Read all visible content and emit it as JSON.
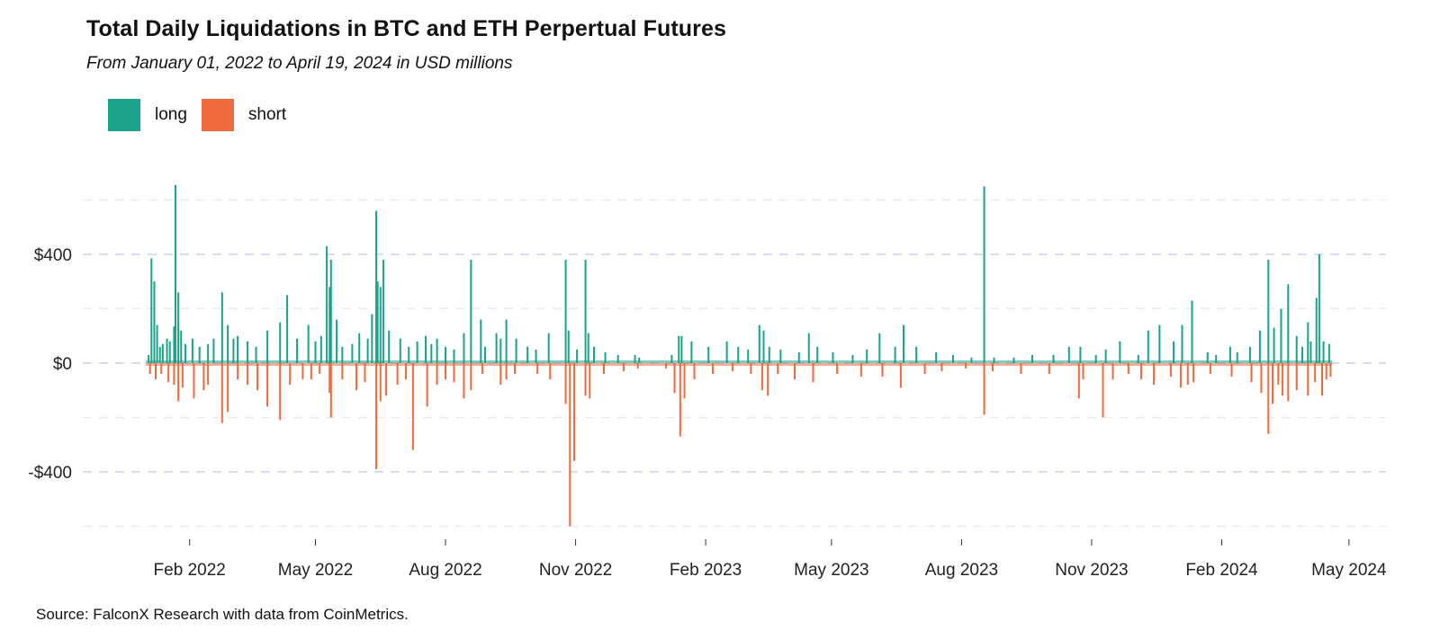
{
  "chart_data": {
    "type": "bar",
    "title": "Total Daily Liquidations in BTC and ETH Perpertual Futures",
    "subtitle": "From January 01, 2022 to April 19, 2024 in USD millions",
    "source": "Source: FalconX Research with data from CoinMetrics.",
    "x_range": [
      "2022-01-01",
      "2024-04-19"
    ],
    "ylim": [
      -650,
      680
    ],
    "y_ticks": [
      -400,
      0,
      400
    ],
    "y_tick_labels": [
      "-$400",
      "$0",
      "$400"
    ],
    "x_ticks": [
      "2022-02-01",
      "2022-05-01",
      "2022-08-01",
      "2022-11-01",
      "2023-02-01",
      "2023-05-01",
      "2023-08-01",
      "2023-11-01",
      "2024-02-01",
      "2024-05-01"
    ],
    "x_tick_labels": [
      "Feb 2022",
      "May 2022",
      "Aug 2022",
      "Nov 2022",
      "Feb 2023",
      "May 2023",
      "Aug 2023",
      "Nov 2023",
      "Feb 2024",
      "May 2024"
    ],
    "grid": "horizontal dashed",
    "legend": {
      "position": "top-left",
      "entries": [
        {
          "label": "long",
          "color": "#1aa38a"
        },
        {
          "label": "short",
          "color": "#ef6a3c"
        }
      ]
    },
    "series": [
      {
        "name": "long",
        "color": "#1aa38a",
        "values": [
          [
            "2022-01-03",
            30
          ],
          [
            "2022-01-05",
            385
          ],
          [
            "2022-01-07",
            300
          ],
          [
            "2022-01-09",
            140
          ],
          [
            "2022-01-11",
            60
          ],
          [
            "2022-01-13",
            70
          ],
          [
            "2022-01-16",
            90
          ],
          [
            "2022-01-18",
            80
          ],
          [
            "2022-01-21",
            135
          ],
          [
            "2022-01-22",
            655
          ],
          [
            "2022-01-24",
            260
          ],
          [
            "2022-01-26",
            120
          ],
          [
            "2022-01-29",
            70
          ],
          [
            "2022-02-03",
            90
          ],
          [
            "2022-02-08",
            60
          ],
          [
            "2022-02-14",
            70
          ],
          [
            "2022-02-18",
            90
          ],
          [
            "2022-02-24",
            260
          ],
          [
            "2022-02-28",
            140
          ],
          [
            "2022-03-04",
            90
          ],
          [
            "2022-03-07",
            100
          ],
          [
            "2022-03-14",
            80
          ],
          [
            "2022-03-20",
            60
          ],
          [
            "2022-03-28",
            120
          ],
          [
            "2022-04-06",
            150
          ],
          [
            "2022-04-11",
            250
          ],
          [
            "2022-04-18",
            90
          ],
          [
            "2022-04-26",
            140
          ],
          [
            "2022-05-01",
            80
          ],
          [
            "2022-05-05",
            100
          ],
          [
            "2022-05-09",
            430
          ],
          [
            "2022-05-11",
            280
          ],
          [
            "2022-05-12",
            380
          ],
          [
            "2022-05-16",
            160
          ],
          [
            "2022-05-20",
            60
          ],
          [
            "2022-05-27",
            70
          ],
          [
            "2022-06-01",
            110
          ],
          [
            "2022-06-07",
            90
          ],
          [
            "2022-06-10",
            180
          ],
          [
            "2022-06-13",
            560
          ],
          [
            "2022-06-14",
            300
          ],
          [
            "2022-06-16",
            280
          ],
          [
            "2022-06-18",
            380
          ],
          [
            "2022-06-22",
            120
          ],
          [
            "2022-06-30",
            90
          ],
          [
            "2022-07-06",
            60
          ],
          [
            "2022-07-12",
            80
          ],
          [
            "2022-07-18",
            100
          ],
          [
            "2022-07-22",
            70
          ],
          [
            "2022-07-26",
            90
          ],
          [
            "2022-08-01",
            60
          ],
          [
            "2022-08-07",
            50
          ],
          [
            "2022-08-14",
            110
          ],
          [
            "2022-08-19",
            380
          ],
          [
            "2022-08-26",
            160
          ],
          [
            "2022-08-29",
            60
          ],
          [
            "2022-09-06",
            110
          ],
          [
            "2022-09-09",
            90
          ],
          [
            "2022-09-13",
            160
          ],
          [
            "2022-09-20",
            90
          ],
          [
            "2022-09-28",
            60
          ],
          [
            "2022-10-04",
            50
          ],
          [
            "2022-10-13",
            110
          ],
          [
            "2022-10-25",
            380
          ],
          [
            "2022-10-27",
            120
          ],
          [
            "2022-11-02",
            50
          ],
          [
            "2022-11-08",
            380
          ],
          [
            "2022-11-10",
            110
          ],
          [
            "2022-11-14",
            60
          ],
          [
            "2022-11-22",
            40
          ],
          [
            "2022-12-01",
            30
          ],
          [
            "2022-12-13",
            30
          ],
          [
            "2022-12-16",
            20
          ],
          [
            "2023-01-08",
            30
          ],
          [
            "2023-01-13",
            100
          ],
          [
            "2023-01-15",
            100
          ],
          [
            "2023-01-22",
            80
          ],
          [
            "2023-02-03",
            60
          ],
          [
            "2023-02-16",
            80
          ],
          [
            "2023-02-24",
            60
          ],
          [
            "2023-03-03",
            50
          ],
          [
            "2023-03-11",
            140
          ],
          [
            "2023-03-14",
            120
          ],
          [
            "2023-03-18",
            60
          ],
          [
            "2023-03-26",
            50
          ],
          [
            "2023-04-08",
            40
          ],
          [
            "2023-04-15",
            110
          ],
          [
            "2023-04-21",
            60
          ],
          [
            "2023-05-02",
            40
          ],
          [
            "2023-05-16",
            30
          ],
          [
            "2023-05-26",
            50
          ],
          [
            "2023-06-04",
            110
          ],
          [
            "2023-06-15",
            60
          ],
          [
            "2023-06-21",
            140
          ],
          [
            "2023-06-30",
            60
          ],
          [
            "2023-07-14",
            40
          ],
          [
            "2023-07-26",
            30
          ],
          [
            "2023-08-08",
            20
          ],
          [
            "2023-08-17",
            650
          ],
          [
            "2023-08-24",
            20
          ],
          [
            "2023-09-07",
            20
          ],
          [
            "2023-09-20",
            30
          ],
          [
            "2023-10-05",
            30
          ],
          [
            "2023-10-16",
            60
          ],
          [
            "2023-10-24",
            60
          ],
          [
            "2023-11-04",
            30
          ],
          [
            "2023-11-11",
            50
          ],
          [
            "2023-11-21",
            80
          ],
          [
            "2023-12-04",
            30
          ],
          [
            "2023-12-11",
            120
          ],
          [
            "2023-12-19",
            140
          ],
          [
            "2023-12-29",
            80
          ],
          [
            "2024-01-04",
            140
          ],
          [
            "2024-01-11",
            230
          ],
          [
            "2024-01-22",
            40
          ],
          [
            "2024-01-28",
            30
          ],
          [
            "2024-02-07",
            60
          ],
          [
            "2024-02-12",
            40
          ],
          [
            "2024-02-21",
            60
          ],
          [
            "2024-02-28",
            120
          ],
          [
            "2024-03-05",
            380
          ],
          [
            "2024-03-09",
            130
          ],
          [
            "2024-03-14",
            200
          ],
          [
            "2024-03-19",
            290
          ],
          [
            "2024-03-25",
            100
          ],
          [
            "2024-03-29",
            60
          ],
          [
            "2024-04-02",
            150
          ],
          [
            "2024-04-04",
            80
          ],
          [
            "2024-04-08",
            240
          ],
          [
            "2024-04-10",
            400
          ],
          [
            "2024-04-13",
            80
          ],
          [
            "2024-04-17",
            70
          ]
        ]
      },
      {
        "name": "short",
        "color": "#ef6a3c",
        "values": [
          [
            "2022-01-04",
            -40
          ],
          [
            "2022-01-08",
            -60
          ],
          [
            "2022-01-12",
            -40
          ],
          [
            "2022-01-17",
            -70
          ],
          [
            "2022-01-21",
            -80
          ],
          [
            "2022-01-24",
            -140
          ],
          [
            "2022-01-27",
            -90
          ],
          [
            "2022-02-04",
            -130
          ],
          [
            "2022-02-11",
            -100
          ],
          [
            "2022-02-14",
            -80
          ],
          [
            "2022-02-24",
            -220
          ],
          [
            "2022-02-28",
            -180
          ],
          [
            "2022-03-07",
            -60
          ],
          [
            "2022-03-14",
            -80
          ],
          [
            "2022-03-21",
            -100
          ],
          [
            "2022-03-28",
            -160
          ],
          [
            "2022-04-06",
            -210
          ],
          [
            "2022-04-13",
            -80
          ],
          [
            "2022-04-22",
            -60
          ],
          [
            "2022-04-28",
            -60
          ],
          [
            "2022-05-04",
            -40
          ],
          [
            "2022-05-11",
            -110
          ],
          [
            "2022-05-12",
            -200
          ],
          [
            "2022-05-20",
            -60
          ],
          [
            "2022-05-30",
            -100
          ],
          [
            "2022-06-05",
            -70
          ],
          [
            "2022-06-13",
            -390
          ],
          [
            "2022-06-16",
            -140
          ],
          [
            "2022-06-20",
            -120
          ],
          [
            "2022-06-28",
            -80
          ],
          [
            "2022-07-04",
            -60
          ],
          [
            "2022-07-09",
            -320
          ],
          [
            "2022-07-19",
            -160
          ],
          [
            "2022-07-26",
            -80
          ],
          [
            "2022-08-01",
            -60
          ],
          [
            "2022-08-07",
            -70
          ],
          [
            "2022-08-14",
            -130
          ],
          [
            "2022-08-19",
            -100
          ],
          [
            "2022-08-27",
            -40
          ],
          [
            "2022-09-09",
            -80
          ],
          [
            "2022-09-13",
            -60
          ],
          [
            "2022-09-19",
            -40
          ],
          [
            "2022-10-05",
            -40
          ],
          [
            "2022-10-14",
            -60
          ],
          [
            "2022-10-25",
            -150
          ],
          [
            "2022-10-28",
            -600
          ],
          [
            "2022-10-31",
            -360
          ],
          [
            "2022-11-08",
            -120
          ],
          [
            "2022-11-11",
            -130
          ],
          [
            "2022-11-21",
            -40
          ],
          [
            "2022-12-05",
            -30
          ],
          [
            "2022-12-15",
            -20
          ],
          [
            "2023-01-04",
            -20
          ],
          [
            "2023-01-10",
            -110
          ],
          [
            "2023-01-14",
            -270
          ],
          [
            "2023-01-17",
            -130
          ],
          [
            "2023-01-24",
            -60
          ],
          [
            "2023-02-06",
            -40
          ],
          [
            "2023-02-20",
            -30
          ],
          [
            "2023-03-05",
            -40
          ],
          [
            "2023-03-13",
            -100
          ],
          [
            "2023-03-17",
            -120
          ],
          [
            "2023-03-24",
            -40
          ],
          [
            "2023-04-05",
            -60
          ],
          [
            "2023-04-18",
            -70
          ],
          [
            "2023-05-05",
            -40
          ],
          [
            "2023-05-22",
            -50
          ],
          [
            "2023-06-06",
            -50
          ],
          [
            "2023-06-19",
            -90
          ],
          [
            "2023-07-06",
            -40
          ],
          [
            "2023-07-18",
            -30
          ],
          [
            "2023-08-04",
            -20
          ],
          [
            "2023-08-17",
            -190
          ],
          [
            "2023-08-23",
            -30
          ],
          [
            "2023-09-12",
            -40
          ],
          [
            "2023-10-02",
            -40
          ],
          [
            "2023-10-23",
            -130
          ],
          [
            "2023-10-26",
            -60
          ],
          [
            "2023-11-09",
            -200
          ],
          [
            "2023-11-16",
            -60
          ],
          [
            "2023-11-27",
            -40
          ],
          [
            "2023-12-06",
            -60
          ],
          [
            "2023-12-15",
            -80
          ],
          [
            "2023-12-27",
            -50
          ],
          [
            "2024-01-03",
            -90
          ],
          [
            "2024-01-08",
            -80
          ],
          [
            "2024-01-12",
            -70
          ],
          [
            "2024-01-24",
            -40
          ],
          [
            "2024-02-08",
            -50
          ],
          [
            "2024-02-22",
            -70
          ],
          [
            "2024-02-29",
            -110
          ],
          [
            "2024-03-05",
            -260
          ],
          [
            "2024-03-08",
            -150
          ],
          [
            "2024-03-12",
            -80
          ],
          [
            "2024-03-15",
            -120
          ],
          [
            "2024-03-19",
            -140
          ],
          [
            "2024-03-25",
            -100
          ],
          [
            "2024-04-02",
            -120
          ],
          [
            "2024-04-07",
            -70
          ],
          [
            "2024-04-12",
            -120
          ],
          [
            "2024-04-15",
            -60
          ],
          [
            "2024-04-18",
            -50
          ]
        ]
      }
    ]
  }
}
